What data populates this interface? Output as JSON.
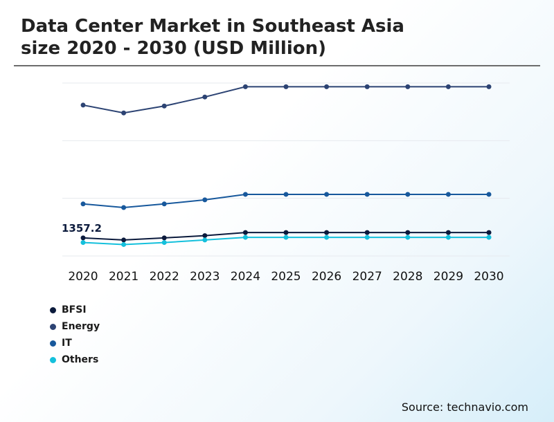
{
  "title_line1": "Data Center Market in Southeast Asia",
  "title_line2": "size 2020 - 2030 (USD Million)",
  "source": "Source: technavio.com",
  "chart_data": {
    "type": "line",
    "title": "Data Center Market in Southeast Asia size 2020 - 2030 (USD Million)",
    "xlabel": "",
    "ylabel": "",
    "categories": [
      "2020",
      "2021",
      "2022",
      "2023",
      "2024",
      "2025",
      "2026",
      "2027",
      "2028",
      "2029",
      "2030"
    ],
    "ylim": [
      0,
      13000
    ],
    "grid": true,
    "legend_position": "bottom-left",
    "annotations": [
      {
        "category": "2020",
        "series": "BFSI",
        "text": "1357.2"
      }
    ],
    "series": [
      {
        "name": "BFSI",
        "color": "#0b1a3c",
        "values": [
          1357.2,
          1200,
          1357.2,
          1530,
          1760,
          1760,
          1760,
          1760,
          1760,
          1760,
          1760
        ]
      },
      {
        "name": "Energy",
        "color": "#2c4373",
        "values": [
          11340,
          10750,
          11270,
          11950,
          12720,
          12720,
          12720,
          12720,
          12720,
          12720,
          12720
        ]
      },
      {
        "name": "IT",
        "color": "#17589c",
        "values": [
          3910,
          3640,
          3910,
          4220,
          4630,
          4630,
          4630,
          4630,
          4630,
          4630,
          4630
        ]
      },
      {
        "name": "Others",
        "color": "#14c0dc",
        "values": [
          1010,
          860,
          1010,
          1200,
          1400,
          1400,
          1400,
          1400,
          1400,
          1400,
          1400
        ]
      }
    ]
  }
}
